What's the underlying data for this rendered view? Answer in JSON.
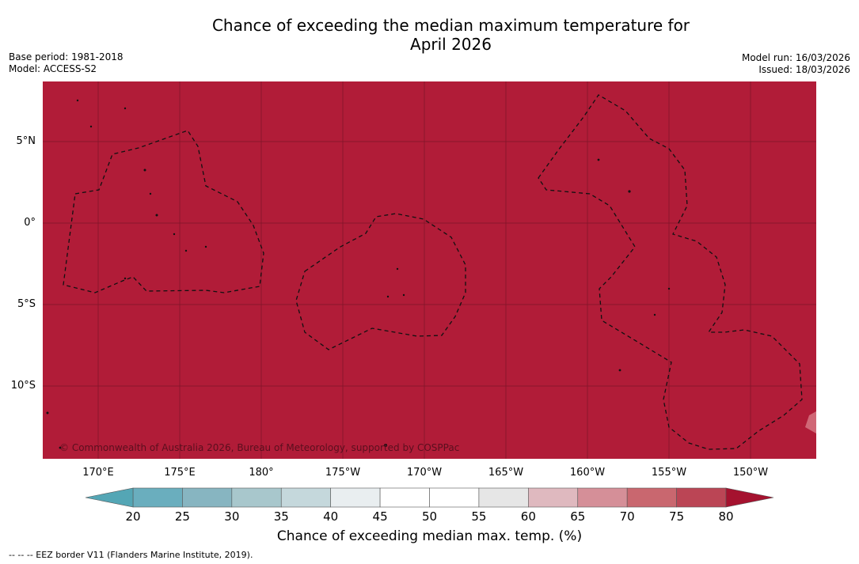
{
  "title": {
    "line1": "Chance of exceeding the median maximum temperature for",
    "line2": "April 2026"
  },
  "meta": {
    "base_period": "Base period: 1981-2018",
    "model": "Model: ACCESS-S2",
    "model_run": "Model run: 16/03/2026",
    "issued": "Issued: 18/03/2026"
  },
  "map": {
    "fill_color": "#b11c38",
    "grid_color": "#5a0f1e",
    "lat_labels": [
      "5°N",
      "0°",
      "5°S",
      "10°S"
    ],
    "lon_labels": [
      "170°E",
      "175°E",
      "180°",
      "175°W",
      "170°W",
      "165°W",
      "160°W",
      "155°W",
      "150°W"
    ],
    "copyright": "© Commonwealth of Australia 2026, Bureau of Meteorology, supported by COSPPac"
  },
  "colorbar": {
    "ticks": [
      "20",
      "25",
      "30",
      "35",
      "40",
      "45",
      "50",
      "55",
      "60",
      "65",
      "70",
      "75",
      "80"
    ],
    "colors": [
      "#6aaebe",
      "#87b5c1",
      "#a8c7cc",
      "#c5d8dc",
      "#e9eef0",
      "#ffffff",
      "#ffffff",
      "#e6e6e6",
      "#dfb9bf",
      "#d58f98",
      "#c9676f",
      "#bb4555"
    ],
    "under_color": "#54a6b5",
    "over_color": "#a5122f",
    "label": "Chance of exceeding median max. temp. (%)"
  },
  "legend_note": "--  --  -- EEZ border V11 (Flanders Marine Institute, 2019)."
}
